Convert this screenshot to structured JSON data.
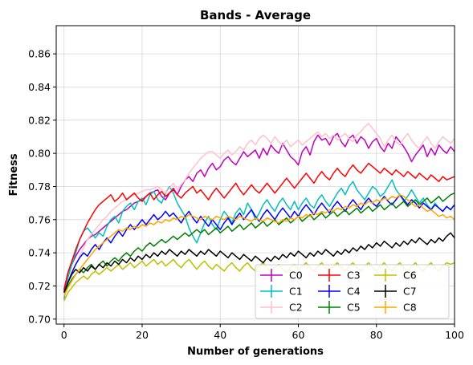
{
  "chart_data": {
    "type": "line",
    "title": "Bands - Average",
    "xlabel": "Number of generations",
    "ylabel": "Fitness",
    "xlim": [
      -2,
      100
    ],
    "ylim": [
      0.697,
      0.877
    ],
    "xticks": [
      0,
      20,
      40,
      60,
      80,
      100
    ],
    "yticks": [
      0.7,
      0.72,
      0.74,
      0.76,
      0.78,
      0.8,
      0.82,
      0.84,
      0.86
    ],
    "xtick_labels": [
      "0",
      "20",
      "40",
      "60",
      "80",
      "100"
    ],
    "ytick_labels": [
      "0.70",
      "0.72",
      "0.74",
      "0.76",
      "0.78",
      "0.80",
      "0.82",
      "0.84",
      "0.86"
    ],
    "grid": true,
    "legend_position": "lower-right",
    "legend_columns": 3,
    "x_start": 0,
    "x_step": 1,
    "series": [
      {
        "name": "C0",
        "color": "#bf00bf",
        "values": [
          0.718,
          0.728,
          0.733,
          0.738,
          0.742,
          0.745,
          0.748,
          0.75,
          0.751,
          0.753,
          0.755,
          0.757,
          0.759,
          0.761,
          0.763,
          0.765,
          0.766,
          0.768,
          0.77,
          0.771,
          0.772,
          0.774,
          0.776,
          0.777,
          0.778,
          0.774,
          0.772,
          0.776,
          0.779,
          0.775,
          0.78,
          0.784,
          0.786,
          0.783,
          0.788,
          0.79,
          0.786,
          0.791,
          0.794,
          0.79,
          0.792,
          0.796,
          0.798,
          0.795,
          0.793,
          0.797,
          0.801,
          0.798,
          0.8,
          0.802,
          0.797,
          0.803,
          0.799,
          0.805,
          0.802,
          0.8,
          0.806,
          0.802,
          0.798,
          0.796,
          0.793,
          0.801,
          0.804,
          0.799,
          0.807,
          0.811,
          0.808,
          0.809,
          0.805,
          0.81,
          0.812,
          0.807,
          0.804,
          0.809,
          0.811,
          0.806,
          0.81,
          0.808,
          0.803,
          0.807,
          0.809,
          0.804,
          0.801,
          0.806,
          0.803,
          0.81,
          0.807,
          0.804,
          0.8,
          0.795,
          0.799,
          0.802,
          0.805,
          0.798,
          0.803,
          0.799,
          0.805,
          0.802,
          0.8,
          0.804,
          0.801
        ]
      },
      {
        "name": "C1",
        "color": "#00bfbf",
        "values": [
          0.712,
          0.725,
          0.733,
          0.74,
          0.748,
          0.753,
          0.755,
          0.752,
          0.749,
          0.752,
          0.75,
          0.756,
          0.76,
          0.762,
          0.758,
          0.765,
          0.768,
          0.77,
          0.766,
          0.771,
          0.773,
          0.769,
          0.775,
          0.777,
          0.772,
          0.77,
          0.776,
          0.78,
          0.776,
          0.77,
          0.766,
          0.762,
          0.755,
          0.75,
          0.746,
          0.752,
          0.758,
          0.762,
          0.757,
          0.754,
          0.76,
          0.765,
          0.762,
          0.758,
          0.764,
          0.767,
          0.763,
          0.77,
          0.766,
          0.76,
          0.764,
          0.769,
          0.772,
          0.768,
          0.765,
          0.77,
          0.773,
          0.769,
          0.766,
          0.771,
          0.766,
          0.77,
          0.773,
          0.769,
          0.767,
          0.772,
          0.775,
          0.771,
          0.768,
          0.772,
          0.776,
          0.779,
          0.775,
          0.78,
          0.783,
          0.778,
          0.775,
          0.772,
          0.776,
          0.78,
          0.778,
          0.774,
          0.776,
          0.78,
          0.784,
          0.778,
          0.775,
          0.771,
          0.774,
          0.778,
          0.774,
          0.77,
          0.773,
          0.769,
          0.766,
          0.77,
          0.767,
          0.765,
          0.768,
          0.766,
          0.769
        ]
      },
      {
        "name": "C2",
        "color": "#ffc0cb",
        "values": [
          0.715,
          0.722,
          0.728,
          0.733,
          0.738,
          0.743,
          0.748,
          0.751,
          0.754,
          0.757,
          0.76,
          0.762,
          0.765,
          0.767,
          0.769,
          0.771,
          0.772,
          0.774,
          0.775,
          0.776,
          0.777,
          0.778,
          0.778,
          0.779,
          0.78,
          0.778,
          0.776,
          0.779,
          0.782,
          0.778,
          0.781,
          0.784,
          0.788,
          0.791,
          0.794,
          0.797,
          0.799,
          0.801,
          0.801,
          0.799,
          0.797,
          0.8,
          0.802,
          0.799,
          0.801,
          0.804,
          0.802,
          0.806,
          0.808,
          0.805,
          0.809,
          0.811,
          0.809,
          0.806,
          0.81,
          0.807,
          0.805,
          0.808,
          0.804,
          0.806,
          0.808,
          0.805,
          0.807,
          0.809,
          0.811,
          0.813,
          0.81,
          0.812,
          0.809,
          0.811,
          0.808,
          0.81,
          0.812,
          0.809,
          0.807,
          0.811,
          0.813,
          0.816,
          0.818,
          0.815,
          0.812,
          0.809,
          0.804,
          0.808,
          0.811,
          0.807,
          0.805,
          0.809,
          0.812,
          0.808,
          0.805,
          0.803,
          0.807,
          0.81,
          0.806,
          0.803,
          0.807,
          0.81,
          0.808,
          0.806,
          0.809
        ]
      },
      {
        "name": "C3",
        "color": "#ff0000",
        "values": [
          0.717,
          0.728,
          0.735,
          0.742,
          0.748,
          0.753,
          0.758,
          0.762,
          0.766,
          0.769,
          0.771,
          0.773,
          0.775,
          0.771,
          0.773,
          0.776,
          0.772,
          0.774,
          0.776,
          0.773,
          0.771,
          0.774,
          0.776,
          0.772,
          0.775,
          0.777,
          0.774,
          0.776,
          0.778,
          0.775,
          0.773,
          0.776,
          0.778,
          0.78,
          0.776,
          0.778,
          0.775,
          0.772,
          0.776,
          0.779,
          0.776,
          0.773,
          0.776,
          0.779,
          0.782,
          0.778,
          0.775,
          0.778,
          0.781,
          0.778,
          0.776,
          0.779,
          0.782,
          0.779,
          0.776,
          0.779,
          0.782,
          0.785,
          0.782,
          0.779,
          0.782,
          0.785,
          0.788,
          0.785,
          0.782,
          0.786,
          0.789,
          0.786,
          0.784,
          0.788,
          0.791,
          0.788,
          0.786,
          0.79,
          0.793,
          0.79,
          0.788,
          0.791,
          0.794,
          0.792,
          0.79,
          0.788,
          0.791,
          0.789,
          0.787,
          0.79,
          0.788,
          0.786,
          0.789,
          0.787,
          0.785,
          0.788,
          0.786,
          0.784,
          0.787,
          0.785,
          0.783,
          0.786,
          0.784,
          0.785,
          0.786
        ]
      },
      {
        "name": "C4",
        "color": "#0000ff",
        "values": [
          0.716,
          0.722,
          0.728,
          0.733,
          0.737,
          0.74,
          0.738,
          0.742,
          0.745,
          0.742,
          0.746,
          0.749,
          0.746,
          0.75,
          0.753,
          0.75,
          0.754,
          0.757,
          0.754,
          0.757,
          0.76,
          0.757,
          0.76,
          0.763,
          0.76,
          0.762,
          0.765,
          0.762,
          0.764,
          0.761,
          0.758,
          0.762,
          0.765,
          0.761,
          0.758,
          0.762,
          0.759,
          0.756,
          0.76,
          0.757,
          0.754,
          0.758,
          0.761,
          0.757,
          0.761,
          0.764,
          0.76,
          0.763,
          0.766,
          0.762,
          0.759,
          0.763,
          0.766,
          0.763,
          0.76,
          0.764,
          0.767,
          0.764,
          0.761,
          0.765,
          0.762,
          0.766,
          0.769,
          0.766,
          0.763,
          0.767,
          0.77,
          0.767,
          0.764,
          0.768,
          0.771,
          0.768,
          0.765,
          0.769,
          0.772,
          0.769,
          0.766,
          0.77,
          0.773,
          0.77,
          0.768,
          0.771,
          0.774,
          0.771,
          0.769,
          0.772,
          0.775,
          0.772,
          0.769,
          0.772,
          0.77,
          0.767,
          0.77,
          0.768,
          0.766,
          0.769,
          0.767,
          0.765,
          0.768,
          0.766,
          0.769
        ]
      },
      {
        "name": "C5",
        "color": "#008000",
        "values": [
          0.716,
          0.72,
          0.724,
          0.727,
          0.73,
          0.728,
          0.731,
          0.733,
          0.73,
          0.733,
          0.735,
          0.732,
          0.735,
          0.737,
          0.735,
          0.738,
          0.74,
          0.738,
          0.741,
          0.743,
          0.741,
          0.744,
          0.746,
          0.744,
          0.746,
          0.748,
          0.746,
          0.748,
          0.75,
          0.748,
          0.75,
          0.752,
          0.75,
          0.752,
          0.754,
          0.752,
          0.754,
          0.751,
          0.753,
          0.755,
          0.752,
          0.754,
          0.756,
          0.753,
          0.755,
          0.757,
          0.754,
          0.756,
          0.758,
          0.755,
          0.757,
          0.759,
          0.756,
          0.758,
          0.76,
          0.757,
          0.759,
          0.761,
          0.758,
          0.76,
          0.762,
          0.759,
          0.761,
          0.763,
          0.76,
          0.762,
          0.764,
          0.761,
          0.763,
          0.765,
          0.762,
          0.764,
          0.766,
          0.763,
          0.765,
          0.767,
          0.764,
          0.766,
          0.768,
          0.765,
          0.767,
          0.769,
          0.766,
          0.768,
          0.77,
          0.767,
          0.769,
          0.771,
          0.768,
          0.77,
          0.772,
          0.769,
          0.771,
          0.773,
          0.77,
          0.772,
          0.774,
          0.771,
          0.773,
          0.775,
          0.776
        ]
      },
      {
        "name": "C6",
        "color": "#bfbf00",
        "values": [
          0.711,
          0.716,
          0.719,
          0.722,
          0.724,
          0.726,
          0.724,
          0.727,
          0.729,
          0.727,
          0.729,
          0.731,
          0.729,
          0.731,
          0.733,
          0.73,
          0.732,
          0.734,
          0.731,
          0.733,
          0.735,
          0.732,
          0.734,
          0.736,
          0.733,
          0.735,
          0.732,
          0.734,
          0.736,
          0.733,
          0.731,
          0.734,
          0.736,
          0.733,
          0.73,
          0.733,
          0.735,
          0.732,
          0.73,
          0.733,
          0.731,
          0.729,
          0.732,
          0.734,
          0.731,
          0.729,
          0.732,
          0.734,
          0.731,
          0.729,
          0.732,
          0.734,
          0.731,
          0.728,
          0.731,
          0.733,
          0.73,
          0.728,
          0.731,
          0.733,
          0.73,
          0.732,
          0.734,
          0.731,
          0.729,
          0.732,
          0.734,
          0.731,
          0.729,
          0.732,
          0.734,
          0.731,
          0.729,
          0.732,
          0.734,
          0.731,
          0.729,
          0.732,
          0.734,
          0.731,
          0.729,
          0.732,
          0.734,
          0.731,
          0.729,
          0.732,
          0.734,
          0.731,
          0.729,
          0.732,
          0.734,
          0.731,
          0.729,
          0.732,
          0.734,
          0.731,
          0.729,
          0.732,
          0.734,
          0.733,
          0.734
        ]
      },
      {
        "name": "C7",
        "color": "#000000",
        "values": [
          0.716,
          0.722,
          0.727,
          0.73,
          0.728,
          0.731,
          0.729,
          0.732,
          0.73,
          0.733,
          0.731,
          0.734,
          0.732,
          0.735,
          0.733,
          0.736,
          0.734,
          0.737,
          0.735,
          0.738,
          0.736,
          0.739,
          0.737,
          0.74,
          0.738,
          0.741,
          0.739,
          0.742,
          0.74,
          0.738,
          0.741,
          0.739,
          0.742,
          0.74,
          0.738,
          0.741,
          0.739,
          0.742,
          0.74,
          0.738,
          0.741,
          0.739,
          0.737,
          0.74,
          0.738,
          0.736,
          0.739,
          0.737,
          0.735,
          0.738,
          0.736,
          0.734,
          0.737,
          0.735,
          0.738,
          0.736,
          0.739,
          0.737,
          0.74,
          0.738,
          0.741,
          0.739,
          0.737,
          0.74,
          0.738,
          0.741,
          0.739,
          0.742,
          0.74,
          0.738,
          0.741,
          0.739,
          0.742,
          0.74,
          0.743,
          0.741,
          0.744,
          0.742,
          0.745,
          0.743,
          0.746,
          0.744,
          0.747,
          0.745,
          0.743,
          0.746,
          0.744,
          0.747,
          0.745,
          0.748,
          0.746,
          0.749,
          0.747,
          0.745,
          0.748,
          0.746,
          0.749,
          0.747,
          0.75,
          0.752,
          0.749
        ]
      },
      {
        "name": "C8",
        "color": "#ffa500",
        "values": [
          0.714,
          0.719,
          0.723,
          0.727,
          0.73,
          0.733,
          0.736,
          0.739,
          0.742,
          0.744,
          0.746,
          0.748,
          0.75,
          0.752,
          0.754,
          0.753,
          0.755,
          0.754,
          0.756,
          0.755,
          0.757,
          0.756,
          0.758,
          0.757,
          0.759,
          0.758,
          0.76,
          0.759,
          0.761,
          0.76,
          0.762,
          0.761,
          0.763,
          0.762,
          0.761,
          0.76,
          0.762,
          0.761,
          0.76,
          0.762,
          0.761,
          0.76,
          0.762,
          0.761,
          0.76,
          0.762,
          0.761,
          0.76,
          0.759,
          0.761,
          0.76,
          0.759,
          0.761,
          0.76,
          0.759,
          0.758,
          0.76,
          0.759,
          0.761,
          0.76,
          0.762,
          0.761,
          0.763,
          0.762,
          0.764,
          0.763,
          0.765,
          0.764,
          0.766,
          0.765,
          0.767,
          0.766,
          0.768,
          0.767,
          0.769,
          0.768,
          0.77,
          0.769,
          0.771,
          0.77,
          0.772,
          0.771,
          0.773,
          0.772,
          0.774,
          0.773,
          0.775,
          0.774,
          0.772,
          0.77,
          0.768,
          0.769,
          0.767,
          0.765,
          0.766,
          0.764,
          0.762,
          0.763,
          0.761,
          0.762,
          0.76
        ]
      }
    ]
  }
}
